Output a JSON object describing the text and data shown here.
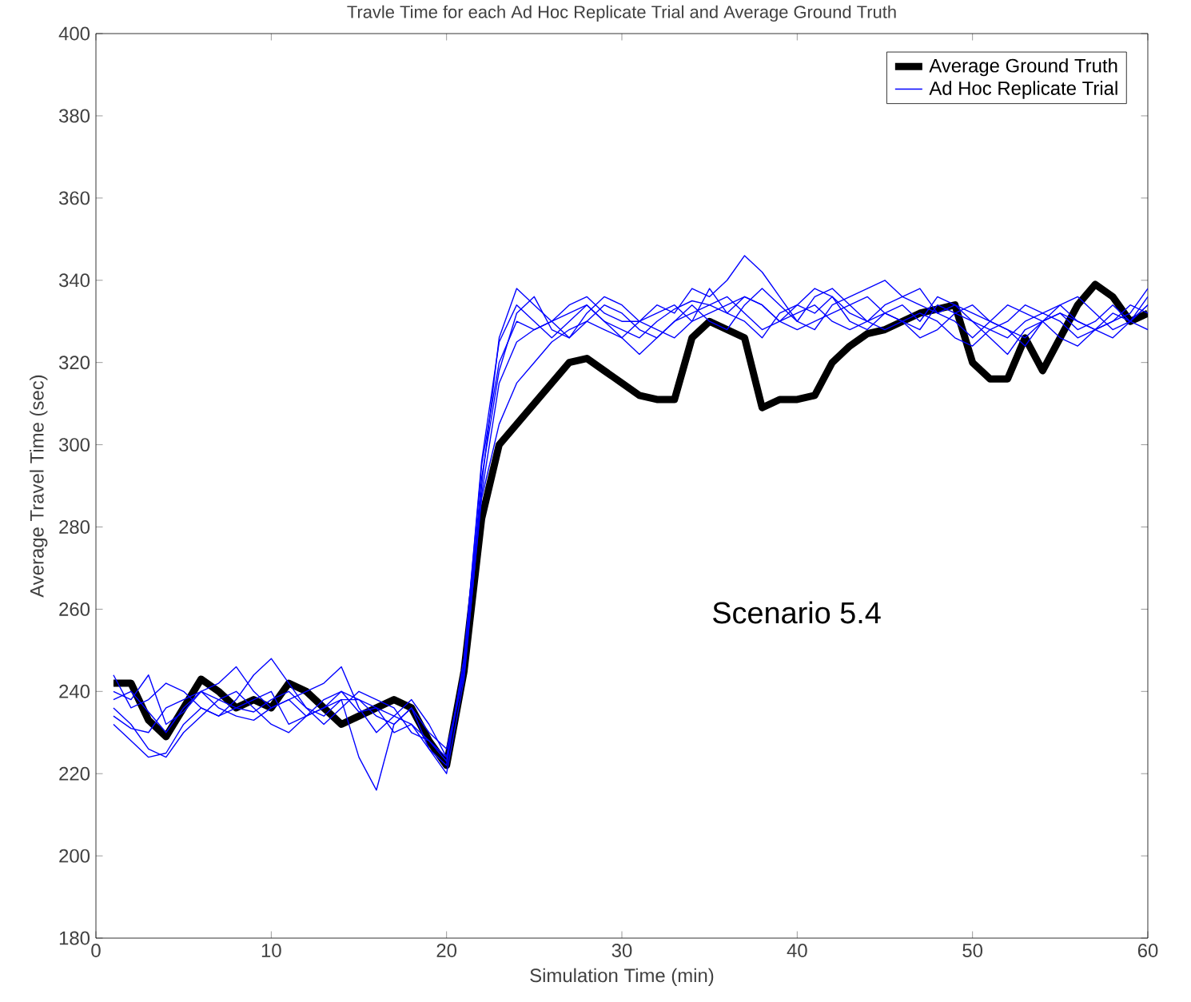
{
  "chart_data": {
    "type": "line",
    "title": "Travle Time for each Ad Hoc Replicate Trial and Average Ground Truth",
    "xlabel": "Simulation Time (min)",
    "ylabel": "Average Travel Time (sec)",
    "annotations": [
      "Scenario 5.4"
    ],
    "x": [
      1,
      2,
      3,
      4,
      5,
      6,
      7,
      8,
      9,
      10,
      11,
      12,
      13,
      14,
      15,
      16,
      17,
      18,
      19,
      20,
      21,
      22,
      23,
      24,
      25,
      26,
      27,
      28,
      29,
      30,
      31,
      32,
      33,
      34,
      35,
      36,
      37,
      38,
      39,
      40,
      41,
      42,
      43,
      44,
      45,
      46,
      47,
      48,
      49,
      50,
      51,
      52,
      53,
      54,
      55,
      56,
      57,
      58,
      59,
      60
    ],
    "xlim": [
      0,
      60
    ],
    "xticks": [
      0,
      10,
      20,
      30,
      40,
      50,
      60
    ],
    "ylim": [
      180,
      400
    ],
    "yticks": [
      180,
      200,
      220,
      240,
      260,
      280,
      300,
      320,
      340,
      360,
      380,
      400
    ],
    "grid": false,
    "legend": "top right",
    "marker": "none",
    "line_style": "solid",
    "series": [
      {
        "name": "Average Ground Truth",
        "color": "#000000",
        "values": [
          242,
          242,
          233,
          229,
          236,
          243,
          240,
          236,
          238,
          236,
          242,
          240,
          236,
          232,
          234,
          236,
          238,
          236,
          228,
          222,
          245,
          282,
          300,
          305,
          310,
          315,
          320,
          321,
          318,
          315,
          312,
          311,
          311,
          326,
          330,
          328,
          326,
          309,
          311,
          311,
          312,
          320,
          324,
          327,
          328,
          330,
          332,
          333,
          334,
          320,
          316,
          316,
          326,
          318,
          326,
          334,
          339,
          336,
          330,
          332
        ]
      },
      {
        "name": "Ad Hoc Replicate Trial",
        "color": "#0000ff",
        "values": [
          238,
          240,
          235,
          230,
          236,
          240,
          238,
          236,
          235,
          238,
          240,
          236,
          234,
          238,
          238,
          236,
          234,
          232,
          226,
          222,
          248,
          295,
          320,
          330,
          328,
          330,
          332,
          334,
          330,
          328,
          326,
          330,
          333,
          335,
          334,
          332,
          336,
          334,
          330,
          328,
          330,
          332,
          334,
          336,
          332,
          330,
          328,
          334,
          332,
          330,
          328,
          326,
          330,
          332,
          334,
          330,
          328,
          332,
          330,
          334
        ]
      },
      {
        "color": "#0000ff",
        "values": [
          236,
          232,
          226,
          224,
          230,
          234,
          238,
          240,
          236,
          232,
          230,
          234,
          238,
          240,
          235,
          236,
          230,
          232,
          228,
          224,
          245,
          290,
          326,
          338,
          334,
          330,
          334,
          336,
          332,
          330,
          330,
          334,
          332,
          338,
          336,
          340,
          346,
          342,
          336,
          330,
          328,
          334,
          336,
          338,
          340,
          336,
          334,
          332,
          330,
          326,
          330,
          334,
          332,
          330,
          332,
          328,
          330,
          334,
          330,
          336
        ]
      },
      {
        "color": "#0000ff",
        "values": [
          232,
          228,
          224,
          225,
          232,
          236,
          234,
          236,
          238,
          240,
          232,
          234,
          236,
          238,
          224,
          216,
          232,
          236,
          226,
          220,
          243,
          288,
          315,
          325,
          328,
          330,
          326,
          330,
          334,
          332,
          328,
          326,
          330,
          332,
          334,
          336,
          332,
          328,
          330,
          334,
          338,
          336,
          332,
          330,
          334,
          336,
          338,
          332,
          334,
          330,
          326,
          322,
          328,
          330,
          326,
          324,
          328,
          330,
          332,
          338
        ]
      },
      {
        "color": "#0000ff",
        "values": [
          240,
          238,
          244,
          232,
          235,
          240,
          242,
          246,
          240,
          236,
          238,
          240,
          242,
          246,
          236,
          230,
          234,
          238,
          232,
          224,
          246,
          292,
          318,
          332,
          336,
          328,
          326,
          332,
          336,
          334,
          330,
          328,
          326,
          330,
          338,
          332,
          330,
          326,
          332,
          334,
          332,
          336,
          330,
          328,
          332,
          334,
          330,
          336,
          334,
          332,
          330,
          328,
          326,
          330,
          334,
          336,
          332,
          328,
          330,
          334
        ]
      },
      {
        "color": "#0000ff",
        "values": [
          244,
          236,
          238,
          242,
          240,
          236,
          234,
          238,
          244,
          248,
          242,
          236,
          232,
          236,
          240,
          238,
          236,
          230,
          228,
          223,
          248,
          296,
          325,
          334,
          330,
          326,
          330,
          334,
          330,
          326,
          322,
          326,
          330,
          334,
          330,
          328,
          334,
          338,
          334,
          330,
          336,
          338,
          334,
          330,
          328,
          330,
          332,
          330,
          326,
          324,
          328,
          330,
          334,
          332,
          330,
          326,
          328,
          330,
          334,
          332
        ]
      },
      {
        "color": "#0000ff",
        "values": [
          234,
          231,
          230,
          236,
          238,
          240,
          236,
          234,
          233,
          236,
          238,
          234,
          236,
          240,
          238,
          234,
          232,
          236,
          230,
          226,
          244,
          287,
          305,
          315,
          320,
          325,
          328,
          330,
          328,
          326,
          330,
          332,
          334,
          330,
          332,
          334,
          336,
          334,
          330,
          332,
          334,
          330,
          328,
          330,
          332,
          330,
          326,
          328,
          332,
          334,
          330,
          328,
          324,
          330,
          332,
          330,
          328,
          326,
          330,
          328
        ]
      }
    ]
  }
}
